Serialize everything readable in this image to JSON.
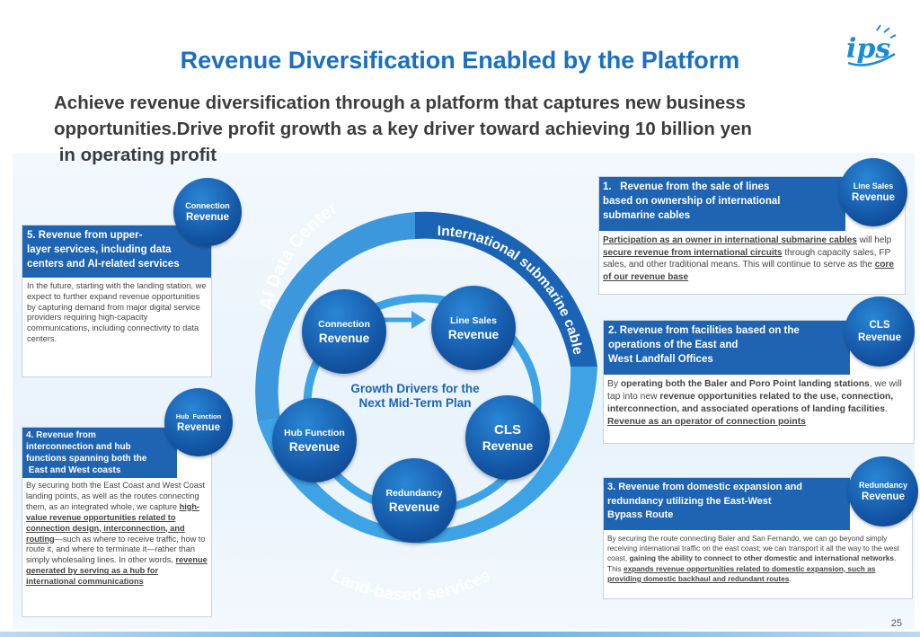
{
  "title": "Revenue Diversification Enabled by the Platform",
  "subtitle": [
    "Achieve revenue diversification through a platform that captures new business",
    "opportunities.Drive profit growth as a key driver toward achieving 10 billion yen",
    " in operating profit"
  ],
  "logo_text": "ips",
  "ring": {
    "arc_left": "AI Data Center",
    "arc_right": "International submarine cable",
    "arc_bottom": "Land-based services",
    "center": [
      "Growth Drivers for the",
      "Next Mid-Term Plan"
    ]
  },
  "nodes": {
    "connection": {
      "a": "Connection",
      "b": "Revenue"
    },
    "line_sales": {
      "a": "Line Sales",
      "b": "Revenue"
    },
    "hub": {
      "a": "Hub Function",
      "b": "Revenue"
    },
    "cls": {
      "a": "CLS",
      "b": "Revenue"
    },
    "redundancy": {
      "a": "Redundancy",
      "b": "Revenue"
    }
  },
  "bubbles": {
    "b1": {
      "a": "Line Sales",
      "b": "Revenue"
    },
    "b2": {
      "a": "CLS",
      "b": "Revenue"
    },
    "b3": {
      "a": "Redundancy",
      "b": "Revenue"
    },
    "b4": {
      "a": "Hub  Function",
      "b": "Revenue"
    },
    "b5": {
      "a": "Connection",
      "b": "Revenue"
    }
  },
  "box1": {
    "header": [
      "1.   Revenue from the sale of lines",
      "based on ownership of international",
      "submarine cables"
    ],
    "u1": "Participation as an owner in international submarine cables",
    "t1": " will help ",
    "u2": "secure revenue from international circuits",
    "t2": " through capacity sales, FP sales, and other traditional means. This will continue to serve as the ",
    "u3": "core of our revenue base"
  },
  "box2": {
    "header": [
      "2. Revenue from facilities based on the",
      "operations of the East and",
      "West Landfall Offices"
    ],
    "t0": "By ",
    "b1": "operating both the Baler and Poro Point landing stations",
    "t1": ", we will tap into new ",
    "b2": "revenue opportunities related to the use, connection, interconnection, and associated operations of landing facilities",
    "t2": ". ",
    "u1": "Revenue as an operator of connection points"
  },
  "box3": {
    "header": [
      "3. Revenue from domestic expansion and",
      "redundancy utilizing the East-West",
      "Bypass Route"
    ],
    "t1": "By securing the route connecting Baler and San Fernando, we can go beyond simply receiving international traffic on the east coast; we can transport it all the way to the west coast, ",
    "b1": "gaining the ability to connect to other domestic and international networks",
    "t2": ". This ",
    "u1": "expands revenue opportunities related to domestic expansion, such as providing domestic backhaul and redundant routes",
    "t3": "."
  },
  "box4": {
    "header": [
      "4. Revenue from",
      "interconnection and hub",
      "functions spanning both the",
      " East and West coasts"
    ],
    "t1": "By securing both the East Coast and West Coast landing points, as well as the routes connecting them, as an integrated whole, we capture ",
    "u1": "high-value revenue opportunities related to connection design, interconnection, and routing",
    "t2": "—such as where to receive traffic, how to route it, and where to terminate it—rather than simply wholesaling lines. In other words, ",
    "u2": "revenue generated by serving as a hub for international communications"
  },
  "box5": {
    "header": [
      "5. Revenue from upper-",
      "layer services, including data",
      "centers and AI-related services"
    ],
    "body": "In the future, starting with the landing station, we expect to further expand revenue opportunities by capturing demand from major digital service providers requiring high-capacity communications, including connectivity to data centers."
  },
  "page_number": "25",
  "colors": {
    "primary": "#1f64b3",
    "ring_dark": "#1a63b5",
    "ring_light": "#3c97dc",
    "inner_ring": "#3ea3e4",
    "title": "#1a6fc0"
  }
}
